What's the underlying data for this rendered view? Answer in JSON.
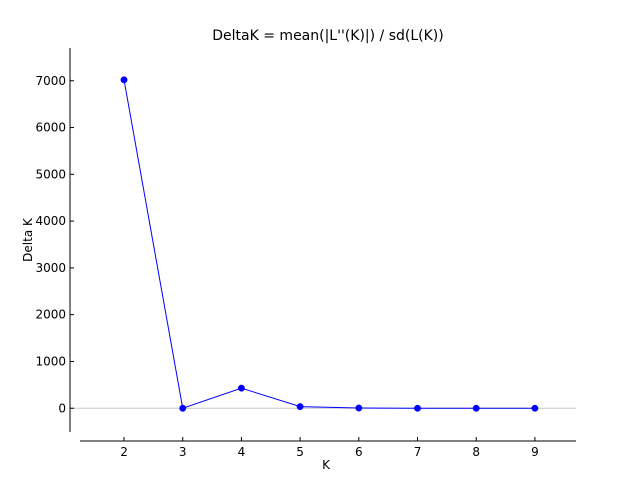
{
  "chart_data": {
    "type": "line",
    "title": "DeltaK = mean(|L''(K)|) / sd(L(K))",
    "xlabel": "K",
    "ylabel": "Delta K",
    "xlim": [
      1.25,
      9.7
    ],
    "ylim": [
      -700,
      7700
    ],
    "xticks": [
      2,
      3,
      4,
      5,
      6,
      7,
      8,
      9
    ],
    "yticks": [
      0,
      1000,
      2000,
      3000,
      4000,
      5000,
      6000,
      7000
    ],
    "x": [
      2,
      3,
      4,
      5,
      6,
      7,
      8,
      9
    ],
    "series": [
      {
        "name": "",
        "values": [
          7020,
          0,
          430,
          35,
          5,
          0,
          0,
          0
        ]
      }
    ],
    "zero_line": true,
    "grid": false,
    "legend": "none",
    "colors": {
      "series": "#0000ff",
      "zero_line": "#c8c8c8",
      "axis": "#000000"
    }
  }
}
